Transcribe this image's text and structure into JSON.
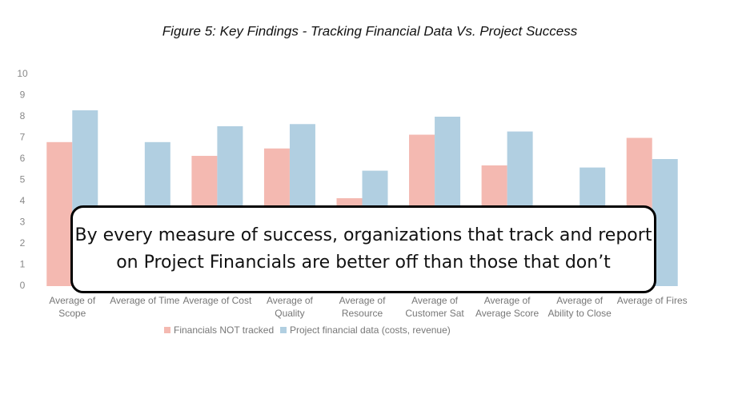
{
  "chart_data": {
    "type": "bar",
    "title": "Figure 5: Key Findings - Tracking Financial Data Vs. Project Success",
    "categories": [
      "Average of Scope",
      "Average of Time",
      "Average of Cost",
      "Average of Quality",
      "Average of Resource",
      "Average of Customer Sat",
      "Average of Average Score",
      "Average of Ability to Close",
      "Average of Fires"
    ],
    "series": [
      {
        "name": "Financials NOT tracked",
        "color": "#f4b9b1",
        "values": [
          6.8,
          null,
          6.15,
          6.5,
          4.15,
          7.15,
          5.7,
          null,
          7.0
        ]
      },
      {
        "name": "Project financial data (costs, revenue)",
        "color": "#b1cfe1",
        "values": [
          8.3,
          6.8,
          7.55,
          7.65,
          5.45,
          8.0,
          7.3,
          5.6,
          6.0
        ]
      }
    ],
    "ylim": [
      0,
      10
    ],
    "yticks": [
      0,
      1,
      2,
      3,
      4,
      5,
      6,
      7,
      8,
      9,
      10
    ],
    "grid": false,
    "annotation": [
      "By every measure of success, organizations that track and report",
      "on Project Financials are better off than those that don’t"
    ]
  }
}
